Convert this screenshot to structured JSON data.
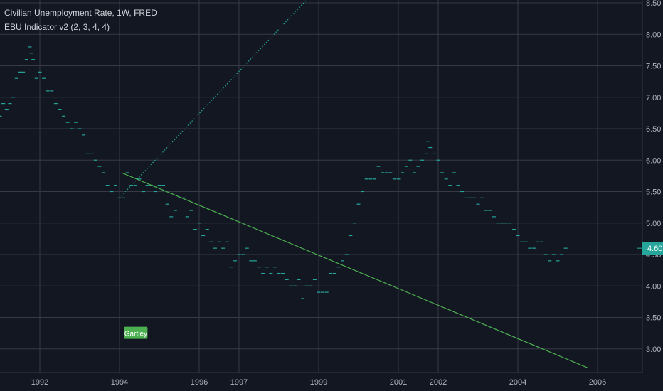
{
  "header": {
    "title": "Civilian Unemployment Rate, 1W, FRED",
    "indicator": "EBU Indicator v2 (2, 3, 4, 4)"
  },
  "chart_data": {
    "type": "scatter",
    "title": "Civilian Unemployment Rate",
    "x_unit": "year",
    "ylim": [
      2.7,
      8.5
    ],
    "xlim": [
      1990.8,
      2007.1
    ],
    "y_ticks": [
      "8.50",
      "8.00",
      "7.50",
      "7.00",
      "6.50",
      "6.00",
      "5.50",
      "5.00",
      "4.50",
      "4.00",
      "3.50",
      "3.00"
    ],
    "x_ticks": [
      "1992",
      "1994",
      "1996",
      "1997",
      "1999",
      "2001",
      "2002",
      "2004",
      "2006"
    ],
    "x_tick_values": [
      1992,
      1994,
      1996,
      1997,
      1999,
      2001,
      2002,
      2004,
      2006
    ],
    "last_value_label": "4.60",
    "last_value": 4.6,
    "grid": true,
    "series": [
      {
        "values": [
          [
            1990.8,
            6.7
          ],
          [
            1990.9,
            6.9
          ],
          [
            1991.0,
            6.8
          ],
          [
            1991.1,
            6.9
          ],
          [
            1991.2,
            7.0
          ],
          [
            1991.3,
            7.3
          ],
          [
            1991.4,
            7.4
          ],
          [
            1991.5,
            7.4
          ],
          [
            1991.6,
            7.6
          ],
          [
            1991.7,
            7.8
          ],
          [
            1991.75,
            7.7
          ],
          [
            1991.8,
            7.6
          ],
          [
            1991.9,
            7.3
          ],
          [
            1992.0,
            7.4
          ],
          [
            1992.1,
            7.3
          ],
          [
            1992.2,
            7.1
          ],
          [
            1992.3,
            7.1
          ],
          [
            1992.4,
            6.9
          ],
          [
            1992.5,
            6.8
          ],
          [
            1992.6,
            6.7
          ],
          [
            1992.7,
            6.6
          ],
          [
            1992.8,
            6.5
          ],
          [
            1992.9,
            6.6
          ],
          [
            1993.0,
            6.5
          ],
          [
            1993.1,
            6.4
          ],
          [
            1993.2,
            6.1
          ],
          [
            1993.3,
            6.1
          ],
          [
            1993.4,
            6.0
          ],
          [
            1993.5,
            5.9
          ],
          [
            1993.6,
            5.8
          ],
          [
            1993.7,
            5.6
          ],
          [
            1993.8,
            5.5
          ],
          [
            1993.9,
            5.6
          ],
          [
            1994.0,
            5.4
          ],
          [
            1994.1,
            5.4
          ],
          [
            1994.2,
            5.8
          ],
          [
            1994.3,
            5.6
          ],
          [
            1994.4,
            5.6
          ],
          [
            1994.5,
            5.7
          ],
          [
            1994.6,
            5.5
          ],
          [
            1994.7,
            5.6
          ],
          [
            1994.8,
            5.6
          ],
          [
            1994.9,
            5.5
          ],
          [
            1995.0,
            5.6
          ],
          [
            1995.1,
            5.6
          ],
          [
            1995.2,
            5.3
          ],
          [
            1995.3,
            5.1
          ],
          [
            1995.4,
            5.2
          ],
          [
            1995.5,
            5.4
          ],
          [
            1995.6,
            5.4
          ],
          [
            1995.7,
            5.1
          ],
          [
            1995.8,
            5.2
          ],
          [
            1995.9,
            4.9
          ],
          [
            1996.0,
            5.0
          ],
          [
            1996.1,
            4.8
          ],
          [
            1996.2,
            4.9
          ],
          [
            1996.3,
            4.7
          ],
          [
            1996.4,
            4.6
          ],
          [
            1996.5,
            4.7
          ],
          [
            1996.6,
            4.6
          ],
          [
            1996.7,
            4.7
          ],
          [
            1996.8,
            4.3
          ],
          [
            1996.9,
            4.4
          ],
          [
            1997.0,
            4.5
          ],
          [
            1997.1,
            4.5
          ],
          [
            1997.2,
            4.6
          ],
          [
            1997.3,
            4.4
          ],
          [
            1997.4,
            4.4
          ],
          [
            1997.5,
            4.3
          ],
          [
            1997.6,
            4.2
          ],
          [
            1997.7,
            4.3
          ],
          [
            1997.8,
            4.2
          ],
          [
            1997.9,
            4.3
          ],
          [
            1998.0,
            4.2
          ],
          [
            1998.1,
            4.2
          ],
          [
            1998.2,
            4.1
          ],
          [
            1998.3,
            4.0
          ],
          [
            1998.4,
            4.0
          ],
          [
            1998.5,
            4.1
          ],
          [
            1998.6,
            3.8
          ],
          [
            1998.7,
            4.0
          ],
          [
            1998.8,
            4.0
          ],
          [
            1998.9,
            4.1
          ],
          [
            1999.0,
            3.9
          ],
          [
            1999.1,
            3.9
          ],
          [
            1999.2,
            3.9
          ],
          [
            1999.3,
            4.2
          ],
          [
            1999.4,
            4.2
          ],
          [
            1999.5,
            4.3
          ],
          [
            1999.6,
            4.4
          ],
          [
            1999.7,
            4.5
          ],
          [
            1999.8,
            4.8
          ],
          [
            1999.9,
            5.0
          ],
          [
            2000.0,
            5.3
          ],
          [
            2000.1,
            5.5
          ],
          [
            2000.2,
            5.7
          ],
          [
            2000.3,
            5.7
          ],
          [
            2000.4,
            5.7
          ],
          [
            2000.5,
            5.9
          ],
          [
            2000.6,
            5.8
          ],
          [
            2000.7,
            5.8
          ],
          [
            2000.8,
            5.8
          ],
          [
            2000.9,
            5.7
          ],
          [
            2001.0,
            5.7
          ],
          [
            2001.1,
            5.8
          ],
          [
            2001.2,
            5.9
          ],
          [
            2001.3,
            6.0
          ],
          [
            2001.4,
            5.8
          ],
          [
            2001.5,
            5.9
          ],
          [
            2001.6,
            6.0
          ],
          [
            2001.7,
            6.1
          ],
          [
            2001.75,
            6.3
          ],
          [
            2001.8,
            6.2
          ],
          [
            2001.9,
            6.1
          ],
          [
            2002.0,
            6.0
          ],
          [
            2002.1,
            5.8
          ],
          [
            2002.2,
            5.7
          ],
          [
            2002.3,
            5.6
          ],
          [
            2002.4,
            5.8
          ],
          [
            2002.5,
            5.6
          ],
          [
            2002.6,
            5.5
          ],
          [
            2002.7,
            5.4
          ],
          [
            2002.8,
            5.4
          ],
          [
            2002.9,
            5.4
          ],
          [
            2003.0,
            5.3
          ],
          [
            2003.1,
            5.4
          ],
          [
            2003.2,
            5.2
          ],
          [
            2003.3,
            5.2
          ],
          [
            2003.4,
            5.1
          ],
          [
            2003.5,
            5.0
          ],
          [
            2003.6,
            5.0
          ],
          [
            2003.7,
            5.0
          ],
          [
            2003.8,
            5.0
          ],
          [
            2003.9,
            4.9
          ],
          [
            2004.0,
            4.8
          ],
          [
            2004.1,
            4.7
          ],
          [
            2004.2,
            4.7
          ],
          [
            2004.3,
            4.6
          ],
          [
            2004.4,
            4.6
          ],
          [
            2004.5,
            4.7
          ],
          [
            2004.6,
            4.7
          ],
          [
            2004.7,
            4.5
          ],
          [
            2004.8,
            4.4
          ],
          [
            2004.9,
            4.5
          ],
          [
            2005.0,
            4.4
          ],
          [
            2005.1,
            4.5
          ],
          [
            2005.2,
            4.6
          ]
        ]
      }
    ],
    "drawings": [
      {
        "kind": "trend_line",
        "color": "#4caf50",
        "style": "solid",
        "start": [
          1994.05,
          5.8
        ],
        "end": [
          2005.75,
          2.7
        ]
      },
      {
        "kind": "trend_line",
        "color": "#26a69a",
        "style": "dotted",
        "start": [
          1994.0,
          5.4
        ],
        "end": [
          1998.7,
          8.55
        ]
      }
    ],
    "annotations": [
      {
        "text": "Gartley",
        "x": 1994.4,
        "y": 3.25,
        "color": "#4caf50"
      }
    ],
    "colors": {
      "dash": "#26a69a",
      "grid": "#363a45",
      "price_label_bg": "#26a69a"
    }
  }
}
